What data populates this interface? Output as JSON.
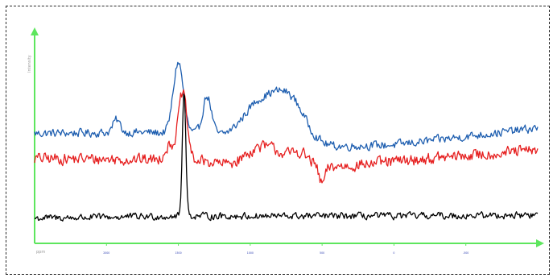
{
  "chart_data": {
    "type": "line",
    "title": "",
    "xlabel": "ppm",
    "ylabel": "Intensity",
    "x_ticks": [
      "2000",
      "1500",
      "1000",
      "500",
      "0",
      "-500"
    ],
    "xlim": [
      2500,
      -1000
    ],
    "ylim": [
      0,
      10
    ],
    "grid": false,
    "legend": "none",
    "axis_color": "#5ee65e",
    "series": [
      {
        "color": "#1f5fb0",
        "base": [
          [
            2500,
            5.25
          ],
          [
            1750,
            5.3
          ],
          [
            1300,
            5.2
          ],
          [
            900,
            4.2
          ],
          [
            500,
            4.6
          ],
          [
            0,
            4.7
          ],
          [
            -1000,
            5.5
          ]
        ],
        "peaks": [
          {
            "x": 1500,
            "height": 3.4,
            "width": 35
          },
          {
            "x": 1300,
            "height": 1.8,
            "width": 30
          },
          {
            "x": 1930,
            "height": 0.6,
            "width": 25
          },
          {
            "x": 900,
            "height": 2.6,
            "width": 140
          },
          {
            "x": 700,
            "height": 1.6,
            "width": 100
          }
        ],
        "noise": 0.18
      },
      {
        "color": "#e62020",
        "base": [
          [
            2500,
            4.05
          ],
          [
            1700,
            4.0
          ],
          [
            1300,
            3.9
          ],
          [
            900,
            3.3
          ],
          [
            700,
            3.6
          ],
          [
            500,
            3.6
          ],
          [
            0,
            3.9
          ],
          [
            -1000,
            4.45
          ]
        ],
        "peaks": [
          {
            "x": 1470,
            "height": 3.2,
            "width": 30
          },
          {
            "x": 1560,
            "height": 0.7,
            "width": 35
          },
          {
            "x": 900,
            "height": 1.3,
            "width": 120
          },
          {
            "x": 650,
            "height": 0.6,
            "width": 60
          },
          {
            "x": 500,
            "height": -0.8,
            "width": 20
          }
        ],
        "noise": 0.25
      },
      {
        "color": "#000000",
        "base": [
          [
            2500,
            1.2
          ],
          [
            1500,
            1.3
          ],
          [
            0,
            1.3
          ],
          [
            -1000,
            1.35
          ]
        ],
        "peaks": [
          {
            "x": 1460,
            "height": 6.1,
            "width": 12
          }
        ],
        "noise": 0.15
      }
    ]
  }
}
